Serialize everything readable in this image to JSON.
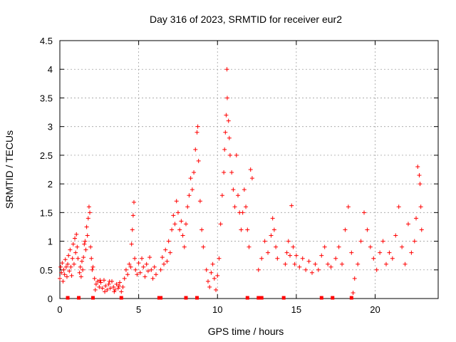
{
  "chart_data": {
    "type": "scatter",
    "title": "Day 316 of 2023, SRMTID for receiver eur2",
    "xlabel": "GPS time / hours",
    "ylabel": "SRMTID / TECUs",
    "xlim": [
      0,
      24
    ],
    "ylim": [
      0,
      4.5
    ],
    "xticks": [
      0,
      5,
      10,
      15,
      20
    ],
    "yticks": [
      0,
      0.5,
      1,
      1.5,
      2,
      2.5,
      3,
      3.5,
      4,
      4.5
    ],
    "xtick_labels": [
      "0",
      "5",
      "10",
      "15",
      "20"
    ],
    "ytick_labels": [
      "0",
      "0.5",
      "1",
      "1.5",
      "2",
      "2.5",
      "3",
      "3.5",
      "4",
      "4.5"
    ],
    "grid": true,
    "marker": "+",
    "color": "#ff0000",
    "series": [
      {
        "name": "SRMTID",
        "points": [
          [
            0.0,
            0.35
          ],
          [
            0.05,
            0.55
          ],
          [
            0.1,
            0.45
          ],
          [
            0.15,
            0.62
          ],
          [
            0.2,
            0.3
          ],
          [
            0.25,
            0.5
          ],
          [
            0.3,
            0.42
          ],
          [
            0.35,
            0.68
          ],
          [
            0.4,
            0.55
          ],
          [
            0.45,
            0.38
          ],
          [
            0.5,
            0.6
          ],
          [
            0.55,
            0.75
          ],
          [
            0.6,
            0.48
          ],
          [
            0.65,
            0.85
          ],
          [
            0.7,
            0.55
          ],
          [
            0.75,
            0.4
          ],
          [
            0.8,
            0.7
          ],
          [
            0.85,
            0.95
          ],
          [
            0.9,
            0.6
          ],
          [
            0.95,
            1.05
          ],
          [
            1.0,
            0.8
          ],
          [
            1.05,
            1.12
          ],
          [
            1.1,
            0.9
          ],
          [
            1.15,
            0.7
          ],
          [
            1.25,
            0.45
          ],
          [
            1.3,
            0.55
          ],
          [
            1.35,
            0.38
          ],
          [
            1.4,
            0.65
          ],
          [
            1.45,
            0.5
          ],
          [
            1.5,
            0.72
          ],
          [
            1.55,
            0.95
          ],
          [
            1.6,
            1.0
          ],
          [
            1.65,
            0.85
          ],
          [
            1.7,
            1.25
          ],
          [
            1.75,
            1.1
          ],
          [
            1.8,
            1.4
          ],
          [
            1.85,
            1.6
          ],
          [
            1.9,
            1.5
          ],
          [
            1.95,
            0.9
          ],
          [
            2.0,
            0.7
          ],
          [
            2.05,
            0.5
          ],
          [
            2.1,
            0.55
          ],
          [
            2.2,
            0.35
          ],
          [
            2.3,
            0.25
          ],
          [
            2.4,
            0.3
          ],
          [
            2.5,
            0.2
          ],
          [
            2.6,
            0.28
          ],
          [
            2.7,
            0.18
          ],
          [
            2.8,
            0.32
          ],
          [
            2.9,
            0.22
          ],
          [
            3.0,
            0.15
          ],
          [
            3.1,
            0.25
          ],
          [
            3.2,
            0.18
          ],
          [
            3.3,
            0.3
          ],
          [
            3.4,
            0.2
          ],
          [
            3.5,
            0.15
          ],
          [
            3.6,
            0.25
          ],
          [
            3.7,
            0.18
          ],
          [
            3.8,
            0.28
          ],
          [
            3.9,
            0.12
          ],
          [
            4.0,
            0.2
          ],
          [
            2.25,
            0.15
          ],
          [
            2.55,
            0.32
          ],
          [
            2.85,
            0.12
          ],
          [
            3.15,
            0.3
          ],
          [
            3.45,
            0.12
          ],
          [
            3.75,
            0.22
          ],
          [
            4.1,
            0.35
          ],
          [
            4.2,
            0.5
          ],
          [
            4.3,
            0.42
          ],
          [
            4.4,
            0.6
          ],
          [
            4.5,
            0.55
          ],
          [
            4.55,
            0.95
          ],
          [
            4.6,
            1.2
          ],
          [
            4.65,
            1.45
          ],
          [
            4.7,
            1.68
          ],
          [
            4.75,
            0.7
          ],
          [
            4.8,
            0.5
          ],
          [
            4.9,
            0.42
          ],
          [
            5.0,
            0.62
          ],
          [
            5.1,
            0.45
          ],
          [
            5.2,
            0.7
          ],
          [
            5.3,
            0.55
          ],
          [
            5.4,
            0.38
          ],
          [
            5.5,
            0.6
          ],
          [
            5.6,
            0.48
          ],
          [
            5.7,
            0.72
          ],
          [
            5.8,
            0.5
          ],
          [
            5.9,
            0.35
          ],
          [
            6.0,
            0.55
          ],
          [
            6.1,
            0.42
          ],
          [
            6.4,
            0.5
          ],
          [
            6.5,
            0.72
          ],
          [
            6.6,
            0.6
          ],
          [
            6.7,
            0.85
          ],
          [
            6.8,
            0.65
          ],
          [
            6.9,
            1.0
          ],
          [
            7.0,
            0.8
          ],
          [
            7.1,
            1.2
          ],
          [
            7.2,
            1.45
          ],
          [
            7.3,
            1.3
          ],
          [
            7.4,
            1.7
          ],
          [
            7.5,
            1.5
          ],
          [
            7.6,
            1.2
          ],
          [
            7.7,
            1.35
          ],
          [
            7.8,
            1.1
          ],
          [
            7.9,
            0.9
          ],
          [
            8.0,
            1.3
          ],
          [
            8.1,
            1.6
          ],
          [
            8.2,
            1.8
          ],
          [
            8.3,
            2.1
          ],
          [
            8.4,
            1.9
          ],
          [
            8.5,
            2.2
          ],
          [
            8.6,
            2.6
          ],
          [
            8.7,
            2.9
          ],
          [
            8.75,
            3.0
          ],
          [
            8.8,
            2.4
          ],
          [
            8.9,
            1.7
          ],
          [
            9.0,
            1.2
          ],
          [
            9.1,
            0.9
          ],
          [
            9.3,
            0.5
          ],
          [
            9.4,
            0.3
          ],
          [
            9.5,
            0.2
          ],
          [
            9.6,
            0.45
          ],
          [
            9.7,
            0.6
          ],
          [
            9.8,
            0.35
          ],
          [
            9.9,
            0.15
          ],
          [
            10.0,
            0.4
          ],
          [
            10.1,
            0.7
          ],
          [
            10.2,
            1.3
          ],
          [
            10.3,
            1.8
          ],
          [
            10.4,
            2.2
          ],
          [
            10.45,
            2.6
          ],
          [
            10.5,
            2.9
          ],
          [
            10.55,
            3.2
          ],
          [
            10.6,
            4.0
          ],
          [
            10.62,
            3.5
          ],
          [
            10.7,
            3.1
          ],
          [
            10.75,
            2.8
          ],
          [
            10.8,
            2.5
          ],
          [
            10.9,
            2.2
          ],
          [
            11.0,
            1.9
          ],
          [
            11.1,
            1.6
          ],
          [
            11.2,
            2.5
          ],
          [
            11.3,
            1.8
          ],
          [
            11.4,
            1.5
          ],
          [
            11.5,
            1.2
          ],
          [
            11.6,
            1.5
          ],
          [
            11.7,
            1.9
          ],
          [
            11.8,
            1.6
          ],
          [
            11.9,
            1.2
          ],
          [
            12.0,
            0.9
          ],
          [
            12.1,
            2.25
          ],
          [
            12.2,
            2.1
          ],
          [
            12.6,
            0.5
          ],
          [
            12.8,
            0.7
          ],
          [
            13.0,
            1.0
          ],
          [
            13.2,
            0.8
          ],
          [
            13.4,
            1.1
          ],
          [
            13.5,
            1.4
          ],
          [
            13.6,
            1.2
          ],
          [
            13.7,
            0.9
          ],
          [
            13.8,
            0.7
          ],
          [
            14.3,
            0.6
          ],
          [
            14.4,
            0.8
          ],
          [
            14.5,
            1.0
          ],
          [
            14.6,
            0.75
          ],
          [
            14.7,
            1.62
          ],
          [
            14.8,
            0.9
          ],
          [
            14.9,
            0.6
          ],
          [
            15.0,
            0.75
          ],
          [
            15.2,
            0.55
          ],
          [
            15.4,
            0.7
          ],
          [
            15.6,
            0.5
          ],
          [
            15.8,
            0.65
          ],
          [
            16.0,
            0.45
          ],
          [
            16.2,
            0.6
          ],
          [
            16.4,
            0.5
          ],
          [
            16.6,
            0.75
          ],
          [
            16.8,
            0.9
          ],
          [
            17.0,
            0.6
          ],
          [
            17.2,
            0.55
          ],
          [
            17.5,
            0.7
          ],
          [
            17.7,
            0.9
          ],
          [
            17.9,
            0.6
          ],
          [
            18.1,
            1.2
          ],
          [
            18.3,
            1.6
          ],
          [
            18.5,
            0.8
          ],
          [
            18.6,
            0.1
          ],
          [
            18.7,
            0.35
          ],
          [
            18.9,
            0.6
          ],
          [
            19.1,
            1.0
          ],
          [
            19.3,
            1.5
          ],
          [
            19.5,
            1.2
          ],
          [
            19.7,
            0.9
          ],
          [
            19.9,
            0.7
          ],
          [
            20.1,
            0.5
          ],
          [
            20.3,
            0.8
          ],
          [
            20.5,
            1.0
          ],
          [
            20.7,
            0.6
          ],
          [
            20.9,
            0.8
          ],
          [
            21.1,
            0.7
          ],
          [
            21.3,
            1.1
          ],
          [
            21.5,
            1.6
          ],
          [
            21.7,
            0.9
          ],
          [
            21.9,
            0.6
          ],
          [
            22.1,
            1.3
          ],
          [
            22.3,
            0.8
          ],
          [
            22.5,
            1.0
          ],
          [
            22.6,
            1.4
          ],
          [
            22.7,
            2.3
          ],
          [
            22.8,
            2.15
          ],
          [
            22.85,
            2.0
          ],
          [
            22.9,
            1.6
          ],
          [
            22.95,
            1.2
          ]
        ]
      },
      {
        "name": "Markers at zero",
        "marker": "square",
        "points": [
          [
            0.5,
            0
          ],
          [
            1.2,
            0
          ],
          [
            2.1,
            0
          ],
          [
            3.9,
            0
          ],
          [
            6.3,
            0
          ],
          [
            6.4,
            0
          ],
          [
            8.0,
            0
          ],
          [
            8.7,
            0
          ],
          [
            11.9,
            0
          ],
          [
            12.6,
            0
          ],
          [
            12.8,
            0
          ],
          [
            14.2,
            0
          ],
          [
            16.6,
            0
          ],
          [
            17.3,
            0
          ],
          [
            18.5,
            0
          ]
        ]
      }
    ]
  }
}
